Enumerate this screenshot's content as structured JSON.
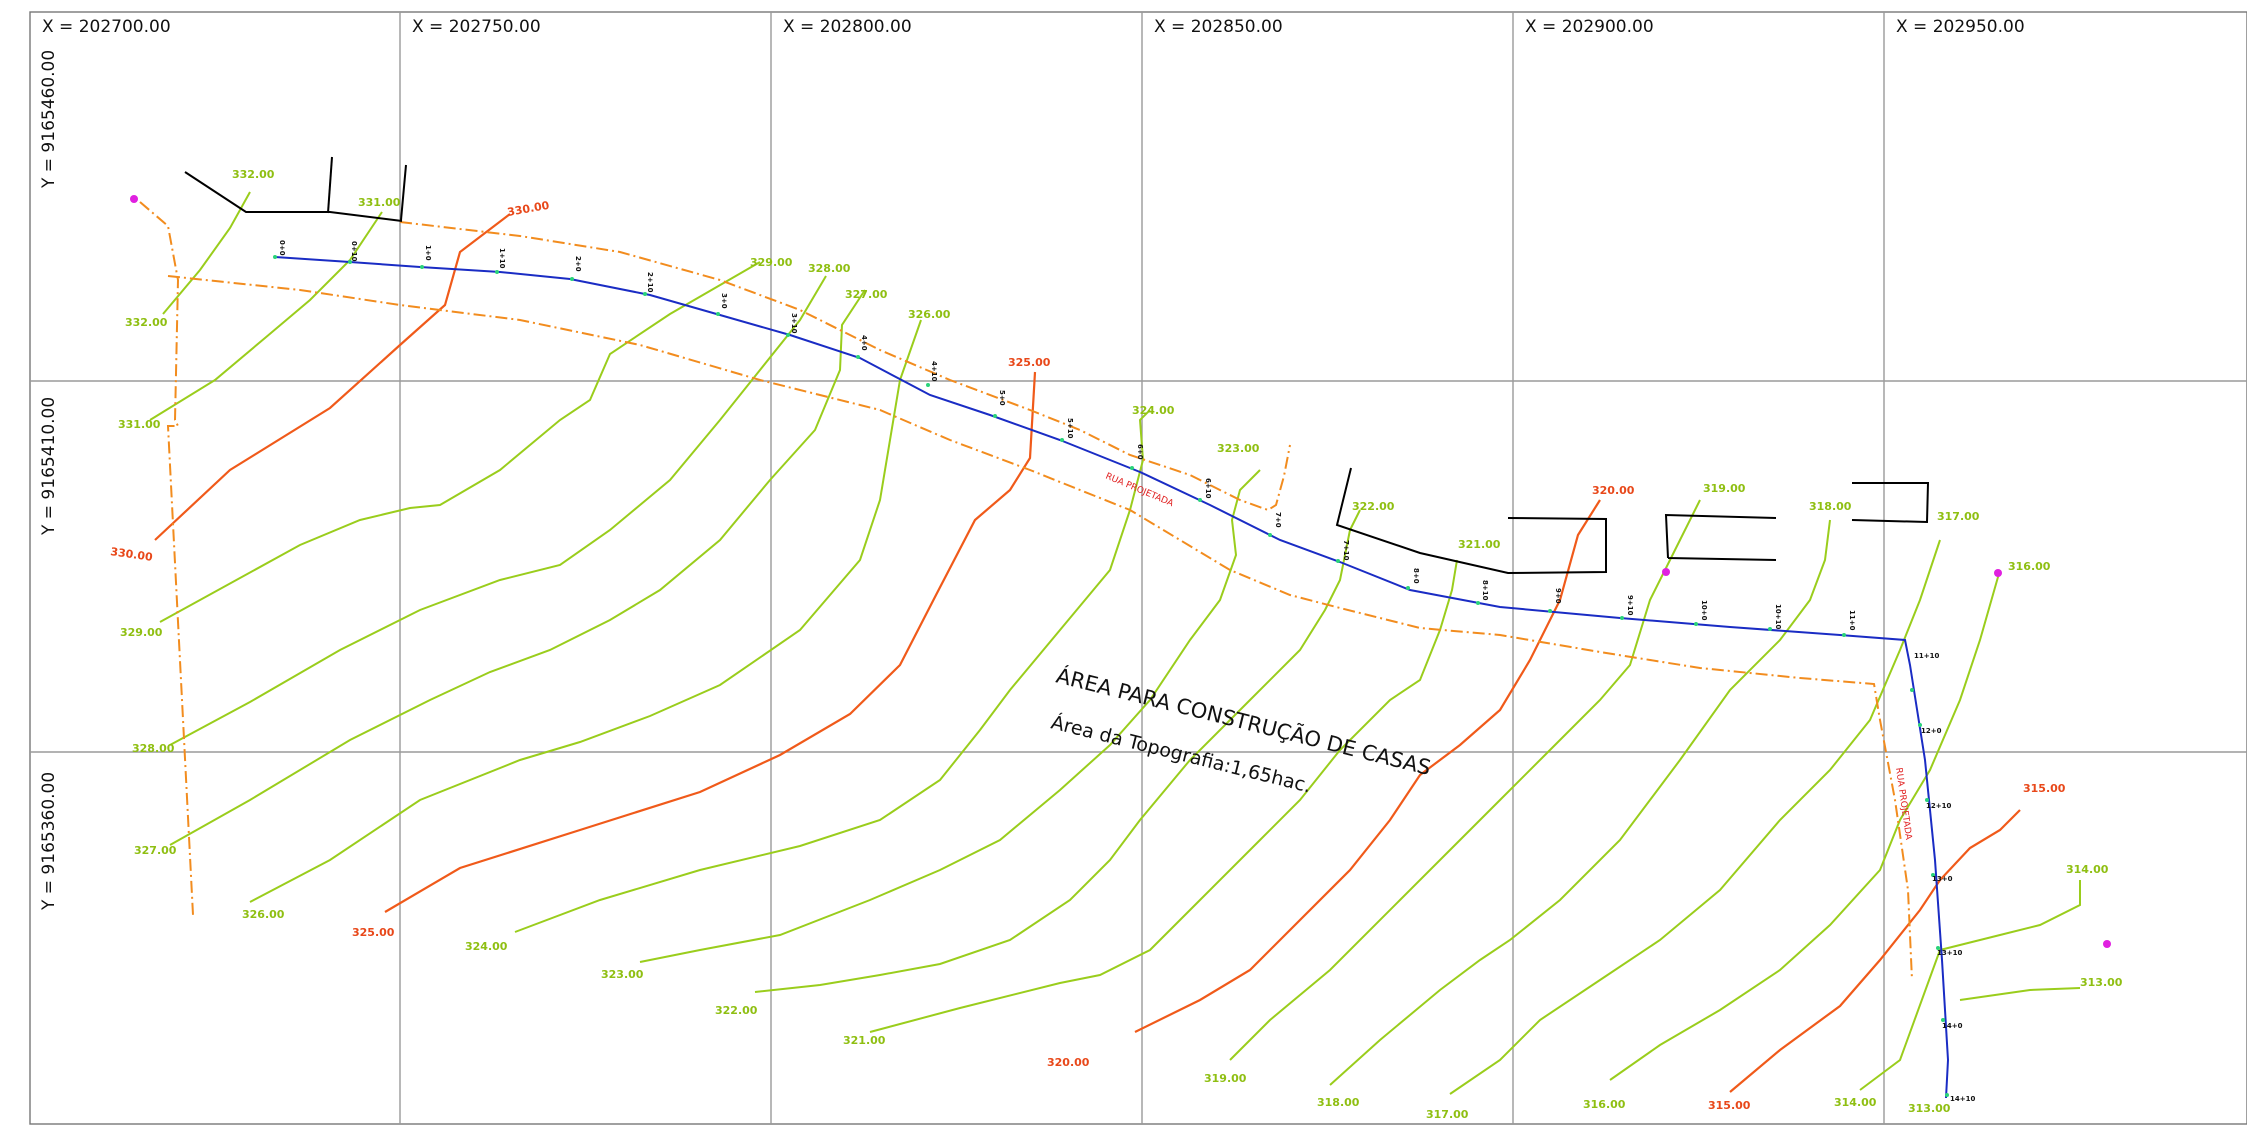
{
  "grid": {
    "x_labels": [
      "X = 202700.00",
      "X = 202750.00",
      "X = 202800.00",
      "X = 202850.00",
      "X = 202900.00",
      "X = 202950.00"
    ],
    "y_labels": [
      "Y = 9165460.00",
      "Y = 9165410.00",
      "Y = 9165360.00"
    ]
  },
  "area": {
    "title": "ÁREA PARA CONSTRUÇÃO DE CASAS",
    "subtitle": "Área da Topografia:1,65hac."
  },
  "road_names": [
    "RUA PROJETADA",
    "RUA PROJETADA"
  ],
  "contours": [
    {
      "label": "332.00",
      "major": false
    },
    {
      "label": "332.00",
      "major": false
    },
    {
      "label": "331.00",
      "major": false
    },
    {
      "label": "331.00",
      "major": false
    },
    {
      "label": "330.00",
      "major": true
    },
    {
      "label": "330.00",
      "major": true
    },
    {
      "label": "329.00",
      "major": false
    },
    {
      "label": "329.00",
      "major": false
    },
    {
      "label": "328.00",
      "major": false
    },
    {
      "label": "328.00",
      "major": false
    },
    {
      "label": "327.00",
      "major": false
    },
    {
      "label": "327.00",
      "major": false
    },
    {
      "label": "326.00",
      "major": false
    },
    {
      "label": "326.00",
      "major": false
    },
    {
      "label": "325.00",
      "major": true
    },
    {
      "label": "325.00",
      "major": true
    },
    {
      "label": "324.00",
      "major": false
    },
    {
      "label": "324.00",
      "major": false
    },
    {
      "label": "323.00",
      "major": false
    },
    {
      "label": "323.00",
      "major": false
    },
    {
      "label": "322.00",
      "major": false
    },
    {
      "label": "322.00",
      "major": false
    },
    {
      "label": "321.00",
      "major": false
    },
    {
      "label": "321.00",
      "major": false
    },
    {
      "label": "320.00",
      "major": true
    },
    {
      "label": "320.00",
      "major": true
    },
    {
      "label": "319.00",
      "major": false
    },
    {
      "label": "319.00",
      "major": false
    },
    {
      "label": "318.00",
      "major": false
    },
    {
      "label": "318.00",
      "major": false
    },
    {
      "label": "317.00",
      "major": false
    },
    {
      "label": "317.00",
      "major": false
    },
    {
      "label": "316.00",
      "major": false
    },
    {
      "label": "316.00",
      "major": false
    },
    {
      "label": "315.00",
      "major": true
    },
    {
      "label": "315.00",
      "major": true
    },
    {
      "label": "314.00",
      "major": false
    },
    {
      "label": "314.00",
      "major": false
    },
    {
      "label": "313.00",
      "major": false
    },
    {
      "label": "313.00",
      "major": false
    }
  ],
  "stations": [
    "0+0",
    "0+10",
    "1+0",
    "1+10",
    "2+0",
    "2+10",
    "3+0",
    "3+10",
    "4+0",
    "4+10",
    "5+0",
    "5+10",
    "6+0",
    "6+10",
    "7+0",
    "7+10",
    "8+0",
    "8+10",
    "9+0",
    "9+10",
    "10+0",
    "10+10",
    "11+0",
    "11+10",
    "12+0",
    "12+10",
    "13+0",
    "13+10",
    "14+0",
    "14+10"
  ],
  "colors": {
    "contour_minor": "#9acd1c",
    "contour_major": "#f05a1a",
    "road_edge": "#f28c1e",
    "centerline": "#1a2cc4",
    "buildings": "#000000",
    "markers": "#e020e0",
    "grid": "#9a9a9a"
  }
}
